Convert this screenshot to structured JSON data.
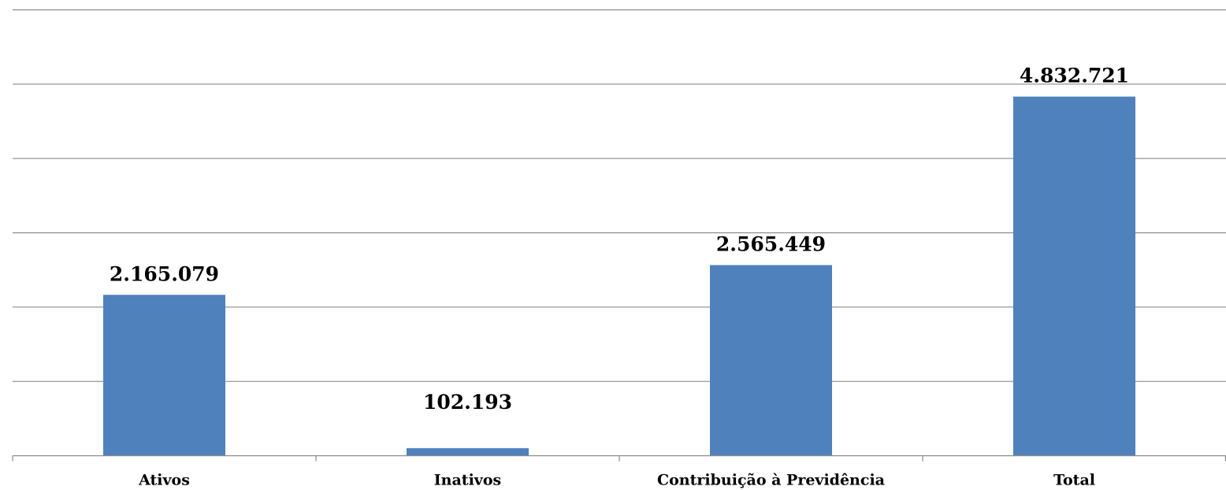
{
  "chart_data": {
    "type": "bar",
    "categories": [
      "Ativos",
      "Inativos",
      "Contribuição à Previdência",
      "Total"
    ],
    "values": [
      2165079,
      102193,
      2565449,
      4832721
    ],
    "data_labels": [
      "2.165.079",
      "102.193",
      "2.565.449",
      "4.832.721"
    ],
    "title": "",
    "xlabel": "",
    "ylabel": "",
    "ylim": [
      0,
      6000000
    ],
    "y_gridline_step": 1000000,
    "grid": true,
    "y_tick_labels_shown": false,
    "legend": "none",
    "bar_color": "#4f81bd",
    "gridline_color": "#8c8c8c"
  }
}
